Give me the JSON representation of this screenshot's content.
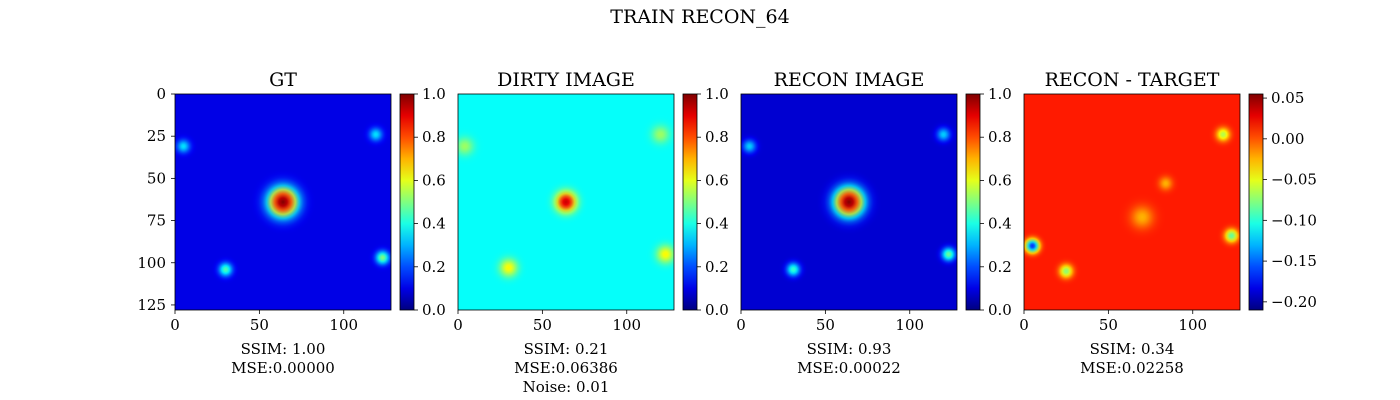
{
  "figure": {
    "title": "TRAIN RECON_64"
  },
  "chart_data": [
    {
      "type": "heatmap",
      "title": "GT",
      "xticks": [
        "0",
        "50",
        "100"
      ],
      "yticks": [
        "0",
        "25",
        "50",
        "75",
        "100",
        "125"
      ],
      "image_size": [
        128,
        128
      ],
      "colormap": "jet",
      "clim": [
        0.0,
        1.0
      ],
      "colorbar_ticks": [
        "0.0",
        "0.2",
        "0.4",
        "0.6",
        "0.8",
        "1.0"
      ],
      "caption": [
        "SSIM: 1.00",
        "MSE:0.00000"
      ],
      "background": 0.1,
      "blobs": [
        {
          "x": 64,
          "y": 64,
          "amp": 0.9,
          "sigma": 6.5
        },
        {
          "x": 30,
          "y": 104,
          "amp": 0.35,
          "sigma": 3
        },
        {
          "x": 123,
          "y": 97,
          "amp": 0.4,
          "sigma": 3
        },
        {
          "x": 5,
          "y": 31,
          "amp": 0.25,
          "sigma": 3
        },
        {
          "x": 119,
          "y": 24,
          "amp": 0.25,
          "sigma": 3
        }
      ]
    },
    {
      "type": "heatmap",
      "title": "DIRTY IMAGE",
      "xticks": [
        "0",
        "50",
        "100"
      ],
      "yticks": [],
      "image_size": [
        128,
        128
      ],
      "colormap": "jet",
      "clim": [
        0.0,
        1.0
      ],
      "colorbar_ticks": [
        "0.0",
        "0.2",
        "0.4",
        "0.6",
        "0.8",
        "1.0"
      ],
      "caption": [
        "SSIM: 0.21",
        "MSE:0.06386",
        "Noise: 0.01"
      ],
      "background": 0.38,
      "blobs": [
        {
          "x": 64,
          "y": 64,
          "amp": 0.55,
          "sigma": 4.5
        },
        {
          "x": 30,
          "y": 103,
          "amp": 0.25,
          "sigma": 4
        },
        {
          "x": 123,
          "y": 95,
          "amp": 0.25,
          "sigma": 4
        },
        {
          "x": 4,
          "y": 31,
          "amp": 0.15,
          "sigma": 4
        },
        {
          "x": 120,
          "y": 24,
          "amp": 0.15,
          "sigma": 4
        }
      ]
    },
    {
      "type": "heatmap",
      "title": "RECON IMAGE",
      "xticks": [
        "0",
        "50",
        "100"
      ],
      "yticks": [],
      "image_size": [
        128,
        128
      ],
      "colormap": "jet",
      "clim": [
        0.0,
        1.0
      ],
      "colorbar_ticks": [
        "0.0",
        "0.2",
        "0.4",
        "0.6",
        "0.8",
        "1.0"
      ],
      "caption": [
        "SSIM: 0.93",
        "MSE:0.00022"
      ],
      "background": 0.08,
      "blobs": [
        {
          "x": 64,
          "y": 64,
          "amp": 0.92,
          "sigma": 6.5
        },
        {
          "x": 31,
          "y": 104,
          "amp": 0.35,
          "sigma": 3
        },
        {
          "x": 123,
          "y": 95,
          "amp": 0.4,
          "sigma": 3
        },
        {
          "x": 5,
          "y": 31,
          "amp": 0.25,
          "sigma": 3
        },
        {
          "x": 120,
          "y": 24,
          "amp": 0.25,
          "sigma": 3
        }
      ]
    },
    {
      "type": "heatmap",
      "title": "RECON - TARGET",
      "xticks": [
        "0",
        "50",
        "100"
      ],
      "yticks": [],
      "image_size": [
        128,
        128
      ],
      "colormap": "jet",
      "clim": [
        -0.21,
        0.055
      ],
      "colorbar_ticks": [
        "0.05",
        "0.00",
        "−0.05",
        "−0.10",
        "−0.15",
        "−0.20"
      ],
      "colorbar_tick_values": [
        0.05,
        0.0,
        -0.05,
        -0.1,
        -0.15,
        -0.2
      ],
      "caption": [
        "SSIM: 0.34",
        "MSE:0.02258"
      ],
      "background": 0.015,
      "blobs": [
        {
          "x": 118,
          "y": 24,
          "amp": -0.08,
          "sigma": 3
        },
        {
          "x": 5,
          "y": 90,
          "amp": -0.18,
          "sigma": 3
        },
        {
          "x": 25,
          "y": 105,
          "amp": -0.09,
          "sigma": 3
        },
        {
          "x": 123,
          "y": 84,
          "amp": -0.1,
          "sigma": 3
        },
        {
          "x": 70,
          "y": 73,
          "amp": -0.04,
          "sigma": 5
        },
        {
          "x": 84,
          "y": 53,
          "amp": -0.04,
          "sigma": 3
        }
      ]
    }
  ]
}
